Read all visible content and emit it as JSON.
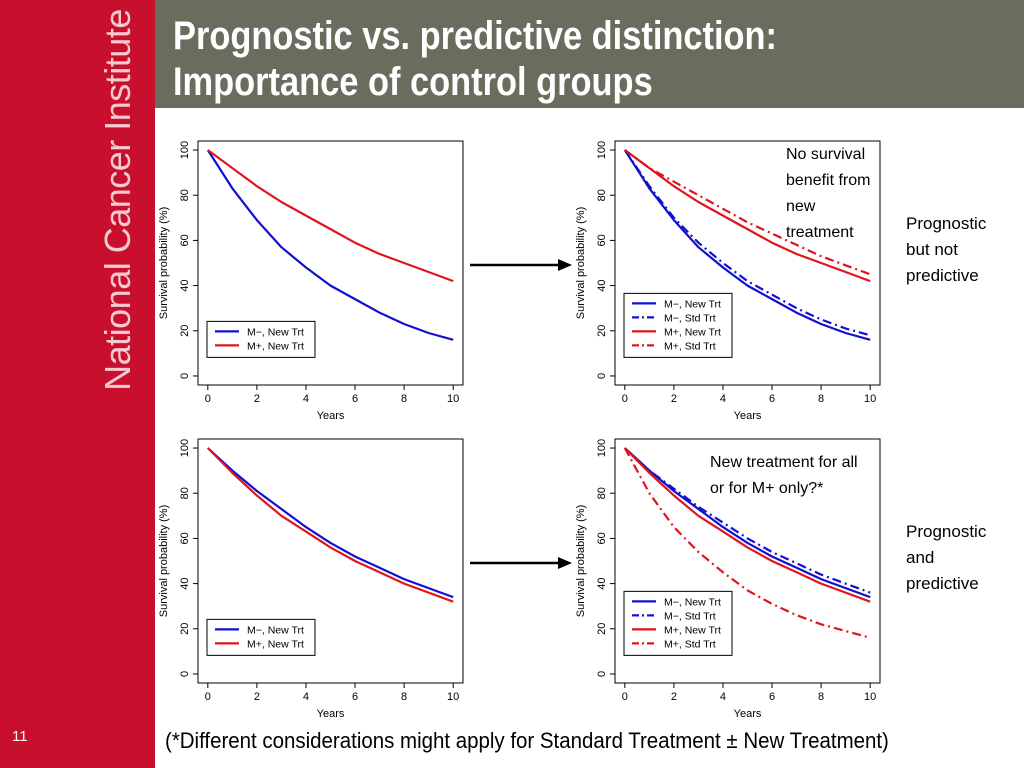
{
  "sidebar": {
    "brand": "National Cancer Institute",
    "slide_number": "11"
  },
  "header": {
    "title_line1": "Prognostic vs. predictive distinction:",
    "title_line2": "Importance of control groups"
  },
  "annotations": {
    "top_right_chart": "No survival benefit from new treatment",
    "bottom_right_chart": "New treatment for all or for M+ only?*",
    "top_row_conclusion": "Prognostic but not predictive",
    "bottom_row_conclusion": "Prognostic and predictive"
  },
  "footnote": "(*Different considerations might apply for Standard Treatment  ±  New Treatment)",
  "colors": {
    "sidebar": "#c8102e",
    "header": "#6b6b5e",
    "m_minus": "#1010d0",
    "m_plus": "#e0141e"
  },
  "chart_data": [
    {
      "type": "line",
      "xlabel": "Years",
      "ylabel": "Survival probability (%)",
      "xlim": [
        0,
        10
      ],
      "ylim": [
        0,
        100
      ],
      "xticks": [
        "0",
        "2",
        "4",
        "6",
        "8",
        "10"
      ],
      "yticks": [
        "0",
        "20",
        "40",
        "60",
        "80",
        "100"
      ],
      "legend_position": "bottom-left",
      "series": [
        {
          "name": "M−, New Trt",
          "color": "#1010d0",
          "dash": "solid",
          "x": [
            0,
            1,
            2,
            3,
            4,
            5,
            6,
            7,
            8,
            9,
            10
          ],
          "y": [
            100,
            83,
            69,
            57,
            48,
            40,
            34,
            28,
            23,
            19,
            16
          ]
        },
        {
          "name": "M+, New Trt",
          "color": "#e0141e",
          "dash": "solid",
          "x": [
            0,
            1,
            2,
            3,
            4,
            5,
            6,
            7,
            8,
            9,
            10
          ],
          "y": [
            100,
            92,
            84,
            77,
            71,
            65,
            59,
            54,
            50,
            46,
            42
          ]
        }
      ]
    },
    {
      "type": "line",
      "xlabel": "Years",
      "ylabel": "Survival probability (%)",
      "xlim": [
        0,
        10
      ],
      "ylim": [
        0,
        100
      ],
      "xticks": [
        "0",
        "2",
        "4",
        "6",
        "8",
        "10"
      ],
      "yticks": [
        "0",
        "20",
        "40",
        "60",
        "80",
        "100"
      ],
      "legend_position": "bottom-left",
      "series": [
        {
          "name": "M−, New Trt",
          "color": "#1010d0",
          "dash": "solid",
          "x": [
            0,
            1,
            2,
            3,
            4,
            5,
            6,
            7,
            8,
            9,
            10
          ],
          "y": [
            100,
            83,
            69,
            57,
            48,
            40,
            34,
            28,
            23,
            19,
            16
          ]
        },
        {
          "name": "M−, Std Trt",
          "color": "#1010d0",
          "dash": "dashdot",
          "x": [
            0,
            1,
            2,
            3,
            4,
            5,
            6,
            7,
            8,
            9,
            10
          ],
          "y": [
            100,
            84,
            70,
            59,
            50,
            42,
            36,
            30,
            25,
            21,
            18
          ]
        },
        {
          "name": "M+, New Trt",
          "color": "#e0141e",
          "dash": "solid",
          "x": [
            0,
            1,
            2,
            3,
            4,
            5,
            6,
            7,
            8,
            9,
            10
          ],
          "y": [
            100,
            92,
            84,
            77,
            71,
            65,
            59,
            54,
            50,
            46,
            42
          ]
        },
        {
          "name": "M+, Std Trt",
          "color": "#e0141e",
          "dash": "dashdot",
          "x": [
            0,
            1,
            2,
            3,
            4,
            5,
            6,
            7,
            8,
            9,
            10
          ],
          "y": [
            100,
            92,
            86,
            80,
            74,
            68,
            63,
            58,
            53,
            49,
            45
          ]
        }
      ]
    },
    {
      "type": "line",
      "xlabel": "Years",
      "ylabel": "Survival probability (%)",
      "xlim": [
        0,
        10
      ],
      "ylim": [
        0,
        100
      ],
      "xticks": [
        "0",
        "2",
        "4",
        "6",
        "8",
        "10"
      ],
      "yticks": [
        "0",
        "20",
        "40",
        "60",
        "80",
        "100"
      ],
      "legend_position": "bottom-left",
      "series": [
        {
          "name": "M−, New Trt",
          "color": "#1010d0",
          "dash": "solid",
          "x": [
            0,
            1,
            2,
            3,
            4,
            5,
            6,
            7,
            8,
            9,
            10
          ],
          "y": [
            100,
            90,
            81,
            73,
            65,
            58,
            52,
            47,
            42,
            38,
            34
          ]
        },
        {
          "name": "M+, New Trt",
          "color": "#e0141e",
          "dash": "solid",
          "x": [
            0,
            1,
            2,
            3,
            4,
            5,
            6,
            7,
            8,
            9,
            10
          ],
          "y": [
            100,
            89,
            79,
            70,
            63,
            56,
            50,
            45,
            40,
            36,
            32
          ]
        }
      ]
    },
    {
      "type": "line",
      "xlabel": "Years",
      "ylabel": "Survival probability (%)",
      "xlim": [
        0,
        10
      ],
      "ylim": [
        0,
        100
      ],
      "xticks": [
        "0",
        "2",
        "4",
        "6",
        "8",
        "10"
      ],
      "yticks": [
        "0",
        "20",
        "40",
        "60",
        "80",
        "100"
      ],
      "legend_position": "bottom-left",
      "series": [
        {
          "name": "M−, New Trt",
          "color": "#1010d0",
          "dash": "solid",
          "x": [
            0,
            1,
            2,
            3,
            4,
            5,
            6,
            7,
            8,
            9,
            10
          ],
          "y": [
            100,
            90,
            81,
            73,
            65,
            58,
            52,
            47,
            42,
            38,
            34
          ]
        },
        {
          "name": "M−, Std Trt",
          "color": "#1010d0",
          "dash": "dashdot",
          "x": [
            0,
            1,
            2,
            3,
            4,
            5,
            6,
            7,
            8,
            9,
            10
          ],
          "y": [
            100,
            90,
            82,
            74,
            67,
            60,
            54,
            49,
            44,
            40,
            36
          ]
        },
        {
          "name": "M+, New Trt",
          "color": "#e0141e",
          "dash": "solid",
          "x": [
            0,
            1,
            2,
            3,
            4,
            5,
            6,
            7,
            8,
            9,
            10
          ],
          "y": [
            100,
            89,
            79,
            70,
            63,
            56,
            50,
            45,
            40,
            36,
            32
          ]
        },
        {
          "name": "M+, Std Trt",
          "color": "#e0141e",
          "dash": "dashdot",
          "x": [
            0,
            1,
            2,
            3,
            4,
            5,
            6,
            7,
            8,
            9,
            10
          ],
          "y": [
            100,
            80,
            65,
            54,
            45,
            37,
            31,
            26,
            22,
            19,
            16
          ]
        }
      ]
    }
  ]
}
